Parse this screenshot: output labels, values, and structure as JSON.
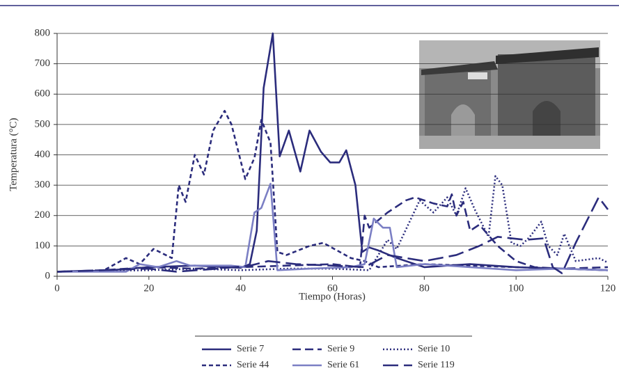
{
  "chart_data": {
    "type": "line",
    "x_label": "Tiempo (Horas)",
    "y_label": "Temperatura (°C)",
    "xlim": [
      0,
      120
    ],
    "ylim": [
      0,
      800
    ],
    "xticks": [
      0,
      20,
      40,
      60,
      80,
      100,
      120
    ],
    "yticks": [
      0,
      100,
      200,
      300,
      400,
      500,
      600,
      700,
      800
    ],
    "grid": true,
    "series": [
      {
        "name": "Serie 7",
        "color": "#2b2c7c",
        "style": "solid",
        "x": [
          0,
          10,
          20,
          30,
          40,
          42,
          43.5,
          45,
          47,
          48.5,
          50.5,
          53,
          55,
          57.5,
          59.5,
          61.5,
          63,
          65,
          66.5,
          68,
          70,
          74,
          80,
          90,
          100,
          110,
          120
        ],
        "values": [
          15,
          18,
          30,
          35,
          28,
          40,
          150,
          620,
          800,
          395,
          480,
          345,
          480,
          410,
          375,
          375,
          415,
          300,
          80,
          95,
          85,
          60,
          30,
          40,
          30,
          25,
          20
        ]
      },
      {
        "name": "Serie 9",
        "color": "#2b2c7c",
        "style": "dashed",
        "x": [
          0,
          10,
          20,
          30,
          40,
          50,
          60,
          66,
          67,
          68,
          72,
          76,
          78,
          82,
          85,
          86,
          87,
          88.5,
          90,
          92,
          96,
          100,
          104,
          110,
          120
        ],
        "values": [
          15,
          20,
          30,
          25,
          30,
          35,
          40,
          30,
          200,
          160,
          210,
          250,
          260,
          240,
          230,
          270,
          200,
          245,
          150,
          170,
          100,
          50,
          30,
          25,
          30
        ]
      },
      {
        "name": "Serie 10",
        "color": "#2b2c7c",
        "style": "dotted",
        "x": [
          0,
          10,
          20,
          30,
          40,
          50,
          60,
          68,
          72,
          74,
          79,
          82,
          85,
          87,
          89,
          91,
          94,
          95.5,
          97,
          99,
          101,
          103,
          105.5,
          107,
          109,
          110.5,
          113,
          118,
          120
        ],
        "values": [
          15,
          18,
          20,
          25,
          20,
          25,
          25,
          20,
          120,
          90,
          250,
          210,
          260,
          200,
          290,
          220,
          130,
          330,
          300,
          110,
          100,
          130,
          180,
          100,
          70,
          140,
          50,
          60,
          45
        ]
      },
      {
        "name": "Serie 44",
        "color": "#2b2c7c",
        "style": "shortdash",
        "x": [
          0,
          10,
          15,
          18,
          21,
          25,
          26.5,
          28,
          30,
          32,
          34,
          36.5,
          38,
          41,
          43,
          44.5,
          46.5,
          48,
          50,
          55,
          58,
          64,
          67,
          70,
          80,
          100,
          120
        ],
        "values": [
          15,
          18,
          60,
          40,
          90,
          60,
          300,
          245,
          400,
          335,
          480,
          545,
          500,
          320,
          390,
          515,
          440,
          80,
          70,
          100,
          110,
          60,
          50,
          30,
          40,
          30,
          20
        ]
      },
      {
        "name": "Serie 61",
        "color": "#7b7fc4",
        "style": "solid",
        "x": [
          0,
          15,
          18,
          22,
          26,
          29,
          38,
          41,
          43,
          44.5,
          46.5,
          48,
          55,
          64,
          67,
          69,
          71,
          72.5,
          74,
          80,
          90,
          100,
          110,
          120
        ],
        "values": [
          15,
          15,
          40,
          30,
          50,
          35,
          35,
          30,
          210,
          225,
          305,
          20,
          25,
          30,
          40,
          190,
          160,
          160,
          30,
          40,
          30,
          20,
          25,
          20
        ]
      },
      {
        "name": "Serie 119",
        "color": "#2b2c7c",
        "style": "longdash",
        "x": [
          0,
          20,
          26,
          35,
          42,
          46,
          52,
          60,
          67,
          72,
          80,
          87,
          92,
          96,
          102,
          106,
          108,
          110,
          113,
          118,
          120
        ],
        "values": [
          15,
          25,
          15,
          25,
          35,
          50,
          40,
          35,
          30,
          70,
          50,
          70,
          100,
          130,
          120,
          125,
          30,
          10,
          110,
          260,
          220
        ]
      }
    ]
  }
}
